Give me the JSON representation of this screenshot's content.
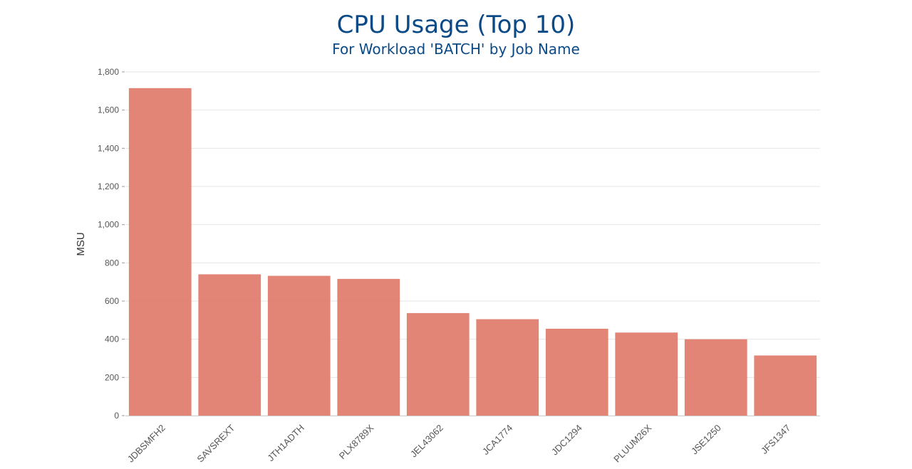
{
  "chart_data": {
    "type": "bar",
    "title": "CPU Usage (Top 10)",
    "subtitle": "For Workload 'BATCH' by Job Name",
    "xlabel": "",
    "ylabel": "MSU",
    "categories": [
      "JDBSMFH2",
      "SAVSREXT",
      "JTH1ADTH",
      "PLX8789X",
      "JEL43062",
      "JCA1774",
      "JDC1294",
      "PLUUM26X",
      "JSE1250",
      "JFS1347"
    ],
    "values": [
      1715,
      740,
      732,
      716,
      537,
      505,
      455,
      435,
      400,
      315
    ],
    "ylim": [
      0,
      1800
    ],
    "yticks": [
      0,
      200,
      400,
      600,
      800,
      1000,
      1200,
      1400,
      1600,
      1800
    ],
    "ytick_labels": [
      "0",
      "200",
      "400",
      "600",
      "800",
      "1,000",
      "1,200",
      "1,400",
      "1,600",
      "1,800"
    ],
    "grid": true,
    "bar_color": "#e07b6a"
  }
}
